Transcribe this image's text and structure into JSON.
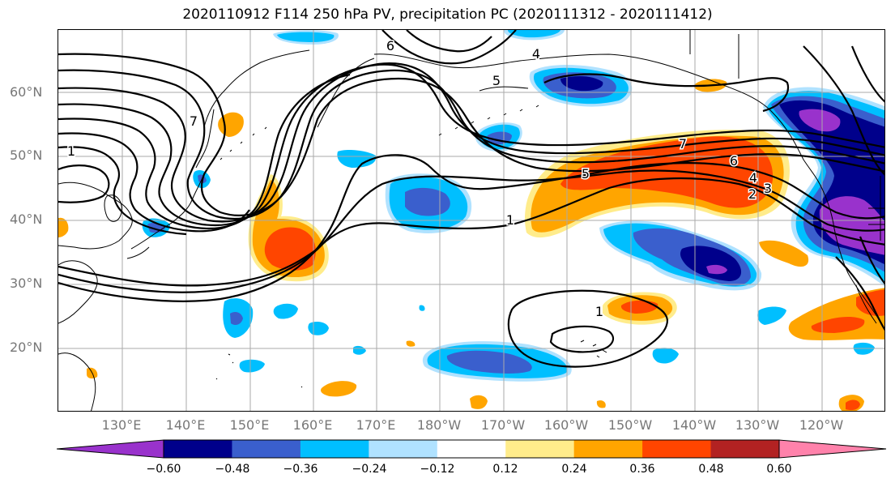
{
  "title": "2020110912 F114 250 hPa PV, precipitation PC (2020111312 - 2020111412)",
  "lat_labels": [
    "60°N",
    "50°N",
    "40°N",
    "30°N",
    "20°N"
  ],
  "lon_labels": [
    "130°E",
    "140°E",
    "150°E",
    "160°E",
    "170°E",
    "180°W",
    "170°W",
    "160°W",
    "150°W",
    "140°W",
    "130°W",
    "120°W"
  ],
  "contour_labels": [
    "1",
    "7",
    "6",
    "5",
    "4",
    "1",
    "7",
    "6",
    "5",
    "4",
    "3",
    "2",
    "1",
    "1"
  ],
  "colorbar": {
    "ticks": [
      "−0.60",
      "−0.48",
      "−0.36",
      "−0.24",
      "−0.12",
      "0.12",
      "0.24",
      "0.36",
      "0.48",
      "0.60"
    ],
    "colors": [
      "#9932cc",
      "#00008b",
      "#3a5fcd",
      "#00bfff",
      "#b0e2ff",
      "#ffffff",
      "#ffec8b",
      "#ffa500",
      "#ff4500",
      "#b22222",
      "#ff82ab"
    ]
  },
  "shading_colors": {
    "neg_light": "#b0e2ff",
    "neg_1": "#00bfff",
    "neg_2": "#3a5fcd",
    "neg_3": "#00008b",
    "neg_4": "#9932cc",
    "pos_light": "#ffec8b",
    "pos_1": "#ffa500",
    "pos_2": "#ff4500"
  }
}
